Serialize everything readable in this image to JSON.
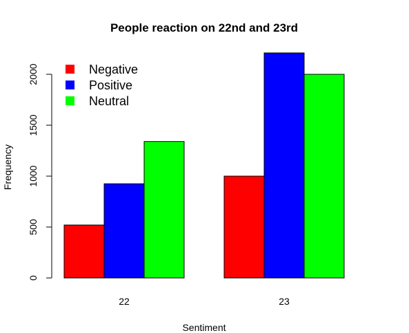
{
  "chart_data": {
    "type": "bar",
    "title": "People reaction on 22nd and 23rd",
    "xlabel": "Sentiment",
    "ylabel": "Frequency",
    "categories": [
      "22",
      "23"
    ],
    "series": [
      {
        "name": "Negative",
        "color": "#ff0000",
        "values": [
          520,
          1000
        ]
      },
      {
        "name": "Positive",
        "color": "#0000ff",
        "values": [
          925,
          2210
        ]
      },
      {
        "name": "Neutral",
        "color": "#00ff00",
        "values": [
          1340,
          2000
        ]
      }
    ],
    "ylim": [
      0,
      2210
    ],
    "yticks": [
      "0",
      "500",
      "1000",
      "1500",
      "2000"
    ],
    "legend_position": "top-left",
    "grid": false
  }
}
